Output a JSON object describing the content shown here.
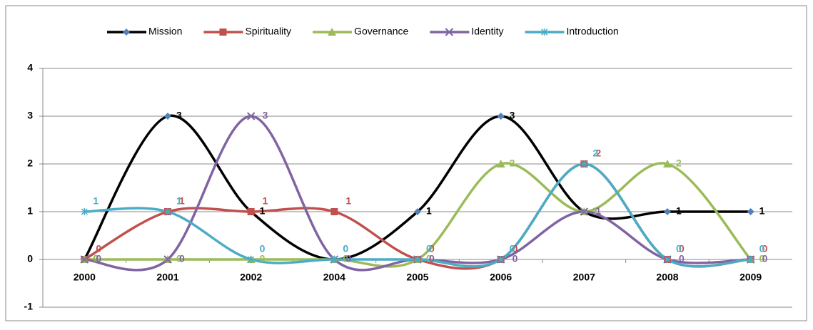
{
  "chart_data": {
    "type": "line",
    "categories": [
      "2000",
      "2001",
      "2002",
      "2004",
      "2005",
      "2006",
      "2007",
      "2008",
      "2009"
    ],
    "series": [
      {
        "name": "Mission",
        "color": "#000000",
        "marker": "diamond",
        "values": [
          0,
          3,
          1,
          0,
          1,
          3,
          1,
          1,
          1
        ]
      },
      {
        "name": "Spirituality",
        "color": "#c0504d",
        "marker": "square",
        "values": [
          0,
          1,
          1,
          1,
          0,
          0,
          2,
          0,
          0
        ]
      },
      {
        "name": "Governance",
        "color": "#9bbb59",
        "marker": "triangle",
        "values": [
          0,
          0,
          0,
          0,
          0,
          2,
          1,
          2,
          0
        ]
      },
      {
        "name": "Identity",
        "color": "#8064a2",
        "marker": "x",
        "values": [
          0,
          0,
          3,
          0,
          0,
          0,
          1,
          0,
          0
        ]
      },
      {
        "name": "Introduction",
        "color": "#4bacc6",
        "marker": "star",
        "values": [
          1,
          1,
          0,
          0,
          0,
          0,
          2,
          0,
          0
        ]
      }
    ],
    "ylim": [
      -1,
      4
    ],
    "yticks": [
      -1,
      0,
      1,
      2,
      3,
      4
    ],
    "grid": true,
    "smooth": true,
    "legend": "top"
  }
}
